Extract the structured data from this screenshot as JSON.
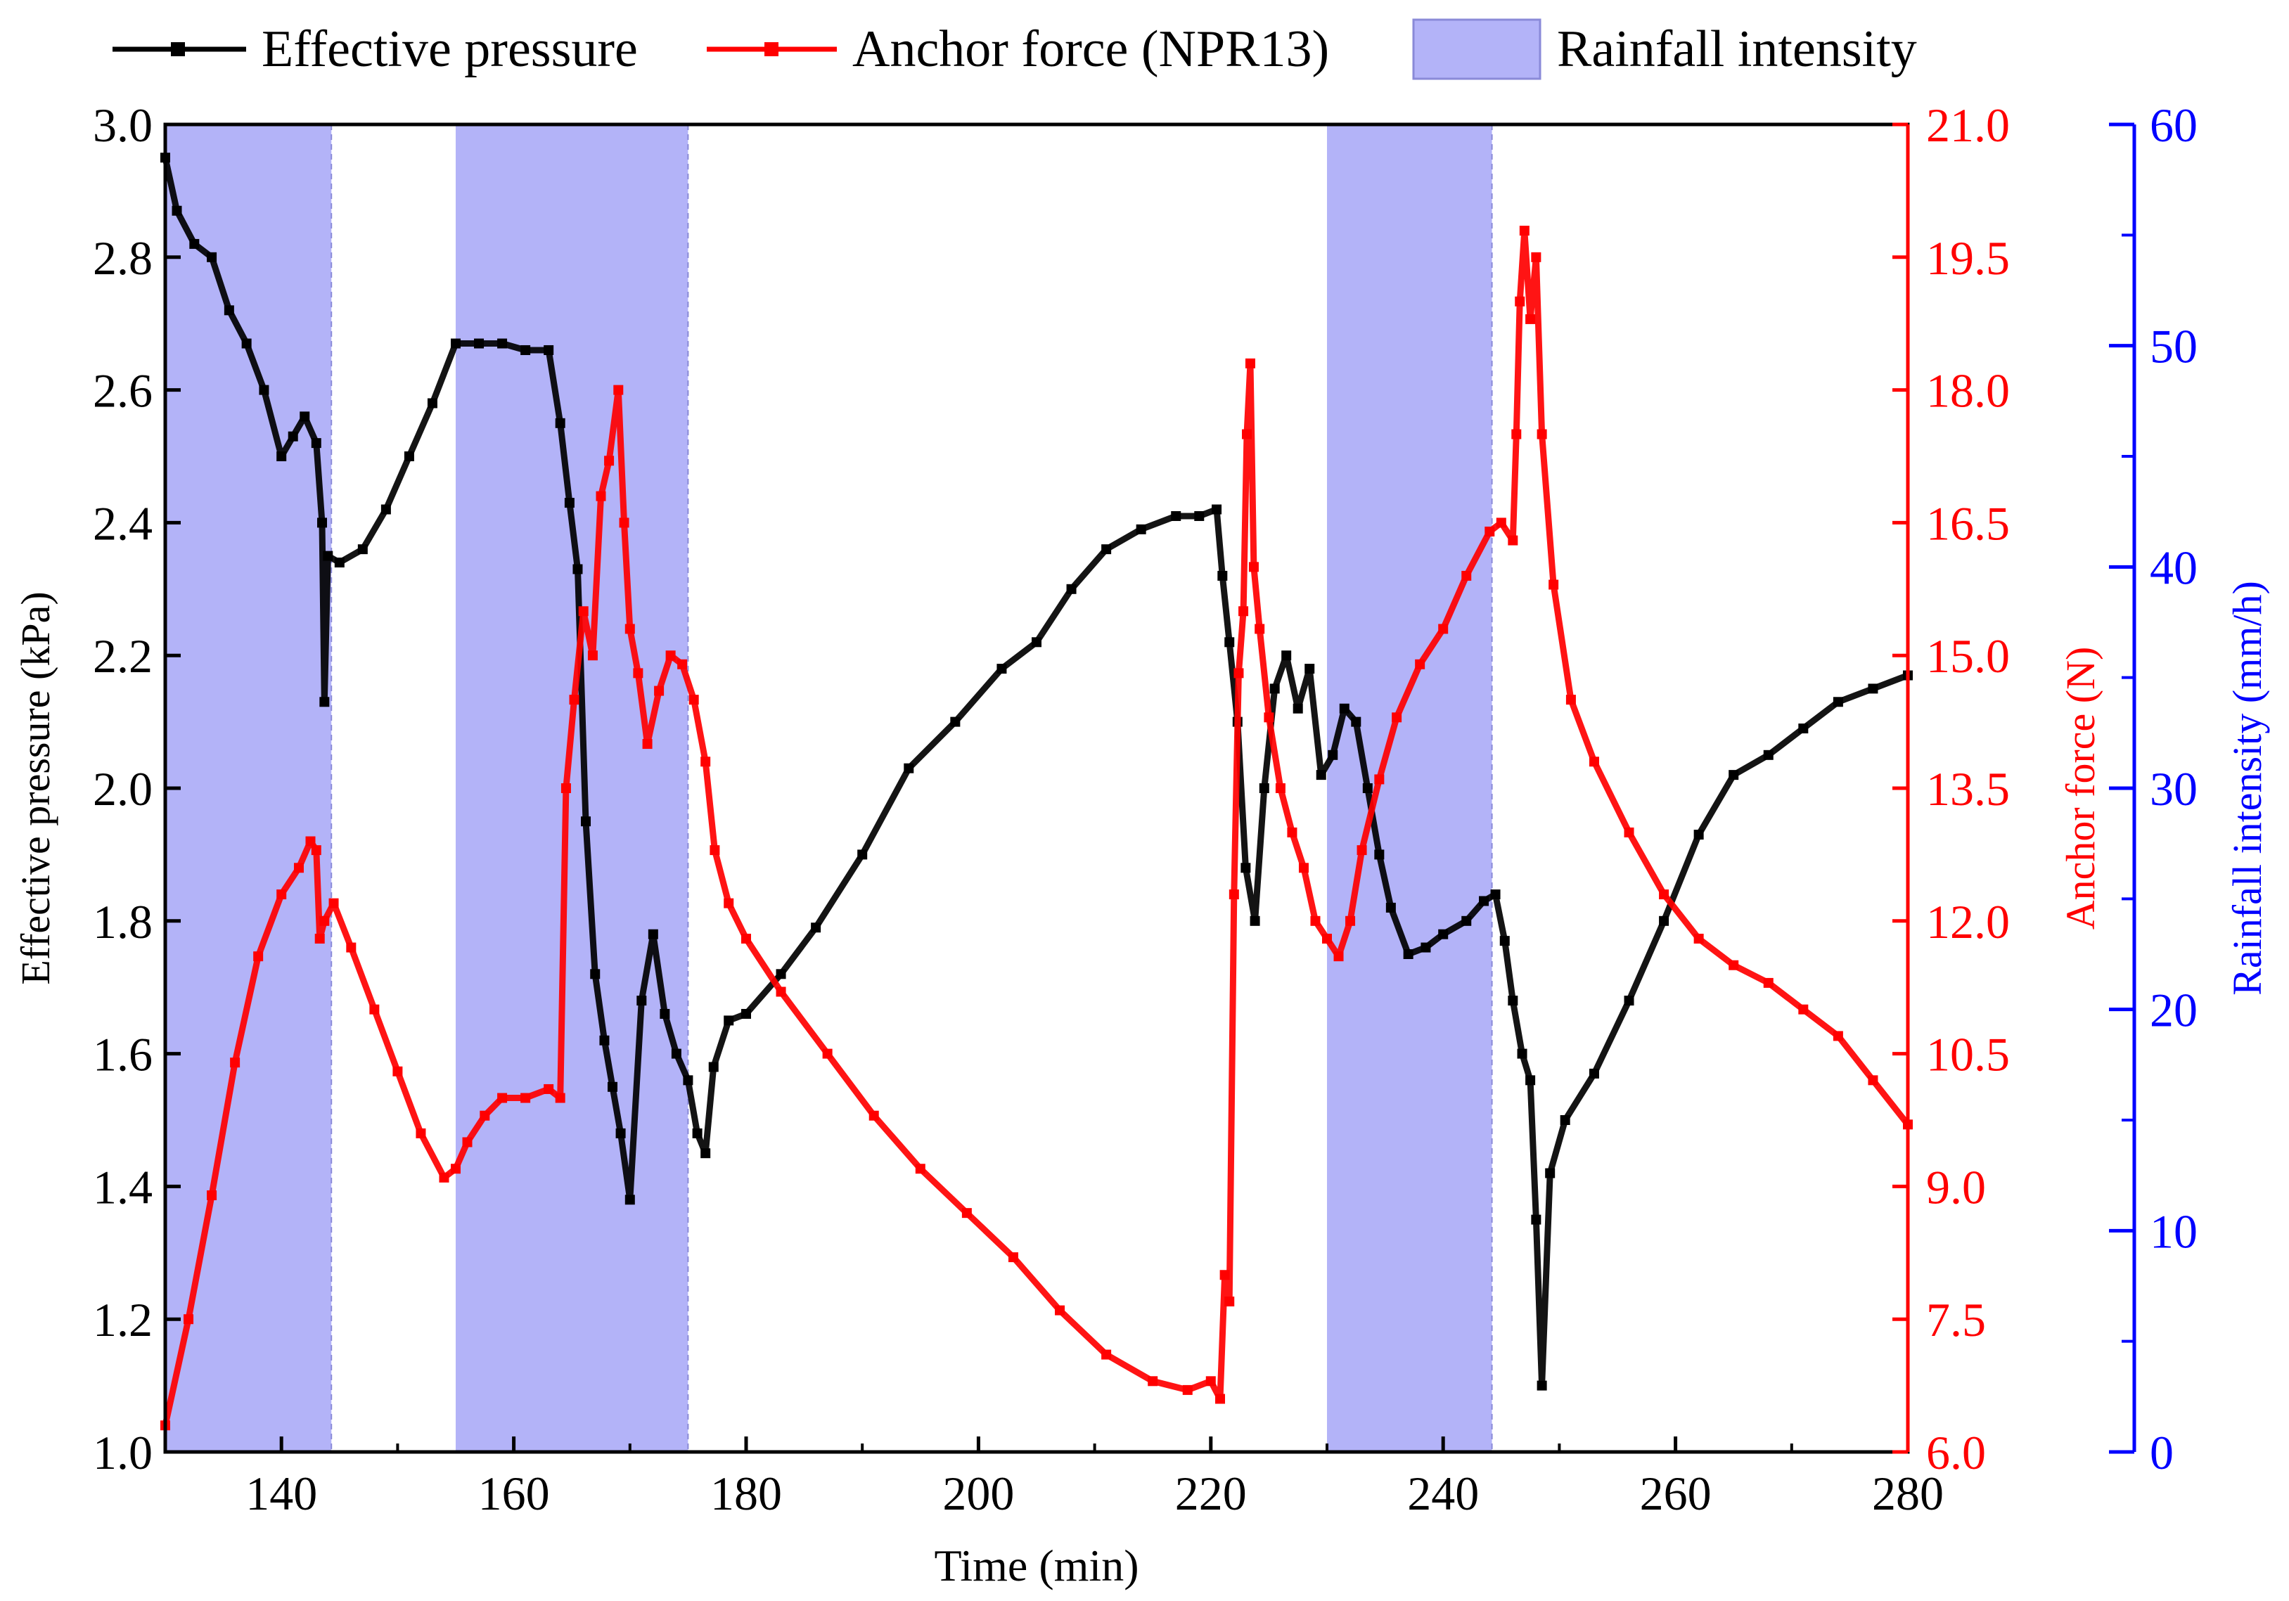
{
  "chart_data": {
    "type": "line",
    "title": "",
    "xlabel": "Time (min)",
    "xlim": [
      130,
      280
    ],
    "xticks": [
      "140",
      "160",
      "180",
      "200",
      "220",
      "240",
      "260",
      "280"
    ],
    "axes": {
      "left": {
        "label": "Effective pressure (kPa)",
        "range": [
          1.0,
          3.0
        ],
        "ticks": [
          "1.0",
          "1.2",
          "1.4",
          "1.6",
          "1.8",
          "2.0",
          "2.2",
          "2.4",
          "2.6",
          "2.8",
          "3.0"
        ],
        "color": "#000000"
      },
      "right": {
        "label": "Anchor force (N)",
        "range": [
          6.0,
          21.0
        ],
        "ticks": [
          "6.0",
          "7.5",
          "9.0",
          "10.5",
          "12.0",
          "13.5",
          "15.0",
          "16.5",
          "18.0",
          "19.5",
          "21.0"
        ],
        "color": "#ff0000"
      },
      "far_right": {
        "label": "Rainfall intensity (mm/h)",
        "range": [
          0,
          60
        ],
        "ticks": [
          "0",
          "10",
          "20",
          "30",
          "40",
          "50",
          "60"
        ],
        "color": "#0000ff"
      }
    },
    "legend": {
      "placement": "top",
      "entries": [
        "Effective pressure",
        "Anchor force (NPR13)",
        "Rainfall intensity"
      ]
    },
    "rainfall": {
      "name": "Rainfall intensity",
      "color": "#b3b3f8",
      "intervals": [
        {
          "start": 130,
          "end": 144.3,
          "intensity": 60
        },
        {
          "start": 155,
          "end": 175,
          "intensity": 60
        },
        {
          "start": 230,
          "end": 244.2,
          "intensity": 60
        }
      ]
    },
    "series": [
      {
        "name": "Effective pressure",
        "axis": "left",
        "color": "#000000",
        "x": [
          130,
          131,
          132.5,
          134,
          135.5,
          137,
          138.5,
          140,
          141,
          142,
          143,
          143.5,
          143.7,
          144,
          145,
          147,
          149,
          151,
          153,
          155,
          157,
          159,
          161,
          163,
          164,
          164.8,
          165.5,
          166.2,
          167,
          167.8,
          168.5,
          169.2,
          170,
          171,
          172,
          173,
          174,
          175,
          175.8,
          176.5,
          177.2,
          178.5,
          180,
          183,
          186,
          190,
          194,
          198,
          202,
          205,
          208,
          211,
          214,
          217,
          219,
          220.5,
          221,
          221.6,
          222.3,
          223,
          223.8,
          224.6,
          225.5,
          226.5,
          227.5,
          228.5,
          229.5,
          230.5,
          231.5,
          232.5,
          233.5,
          234.5,
          235.5,
          237,
          238.5,
          240,
          242,
          243.5,
          244.5,
          245.3,
          246,
          246.8,
          247.5,
          248,
          248.5,
          249.2,
          250.5,
          253,
          256,
          259,
          262,
          265,
          268,
          271,
          274,
          277,
          280
        ],
        "y": [
          2.95,
          2.87,
          2.82,
          2.8,
          2.72,
          2.67,
          2.6,
          2.5,
          2.53,
          2.56,
          2.52,
          2.4,
          2.13,
          2.35,
          2.34,
          2.36,
          2.42,
          2.5,
          2.58,
          2.67,
          2.67,
          2.67,
          2.66,
          2.66,
          2.55,
          2.43,
          2.33,
          1.95,
          1.72,
          1.62,
          1.55,
          1.48,
          1.38,
          1.68,
          1.78,
          1.66,
          1.6,
          1.56,
          1.48,
          1.45,
          1.58,
          1.65,
          1.66,
          1.72,
          1.79,
          1.9,
          2.03,
          2.1,
          2.18,
          2.22,
          2.3,
          2.36,
          2.39,
          2.41,
          2.41,
          2.42,
          2.32,
          2.22,
          2.1,
          1.88,
          1.8,
          2.0,
          2.15,
          2.2,
          2.12,
          2.18,
          2.02,
          2.05,
          2.12,
          2.1,
          2.0,
          1.9,
          1.82,
          1.75,
          1.76,
          1.78,
          1.8,
          1.83,
          1.84,
          1.77,
          1.68,
          1.6,
          1.56,
          1.35,
          1.1,
          1.42,
          1.5,
          1.57,
          1.68,
          1.8,
          1.93,
          2.02,
          2.05,
          2.09,
          2.13,
          2.15,
          2.17
        ]
      },
      {
        "name": "Anchor force (NPR13)",
        "axis": "right",
        "color": "#ff0000",
        "x": [
          130,
          132,
          134,
          136,
          138,
          140,
          141.5,
          142.5,
          143,
          143.3,
          143.7,
          144.5,
          146,
          148,
          150,
          152,
          154,
          155,
          156,
          157.5,
          159,
          161,
          163,
          164,
          164.5,
          165.2,
          166,
          166.8,
          167.5,
          168.2,
          169,
          169.5,
          170,
          170.7,
          171.5,
          172.5,
          173.5,
          174.5,
          175.5,
          176.5,
          177.3,
          178.5,
          180,
          183,
          187,
          191,
          195,
          199,
          203,
          207,
          211,
          215,
          218,
          220,
          220.8,
          221.2,
          221.6,
          222,
          222.4,
          222.8,
          223.1,
          223.4,
          223.7,
          224.2,
          225,
          226,
          227,
          228,
          229,
          230,
          231,
          232,
          233,
          234.5,
          236,
          238,
          240,
          242,
          244,
          245,
          246,
          246.3,
          246.6,
          247,
          247.5,
          248,
          248.5,
          249.5,
          251,
          253,
          256,
          259,
          262,
          265,
          268,
          271,
          274,
          277,
          280
        ],
        "y": [
          6.3,
          7.5,
          8.9,
          10.4,
          11.6,
          12.3,
          12.6,
          12.9,
          12.8,
          11.8,
          12.0,
          12.2,
          11.7,
          11.0,
          10.3,
          9.6,
          9.1,
          9.2,
          9.5,
          9.8,
          10.0,
          10.0,
          10.1,
          10.0,
          13.5,
          14.5,
          15.5,
          15.0,
          16.8,
          17.2,
          18.0,
          16.5,
          15.3,
          14.8,
          14.0,
          14.6,
          15.0,
          14.9,
          14.5,
          13.8,
          12.8,
          12.2,
          11.8,
          11.2,
          10.5,
          9.8,
          9.2,
          8.7,
          8.2,
          7.6,
          7.1,
          6.8,
          6.7,
          6.8,
          6.6,
          8.0,
          7.7,
          12.3,
          14.8,
          15.5,
          17.5,
          18.3,
          16.0,
          15.3,
          14.3,
          13.5,
          13.0,
          12.6,
          12.0,
          11.8,
          11.6,
          12.0,
          12.8,
          13.6,
          14.3,
          14.9,
          15.3,
          15.9,
          16.4,
          16.5,
          16.3,
          17.5,
          19.0,
          19.8,
          18.8,
          19.5,
          17.5,
          15.8,
          14.5,
          13.8,
          13.0,
          12.3,
          11.8,
          11.5,
          11.3,
          11.0,
          10.7,
          10.2,
          9.7
        ]
      }
    ]
  }
}
